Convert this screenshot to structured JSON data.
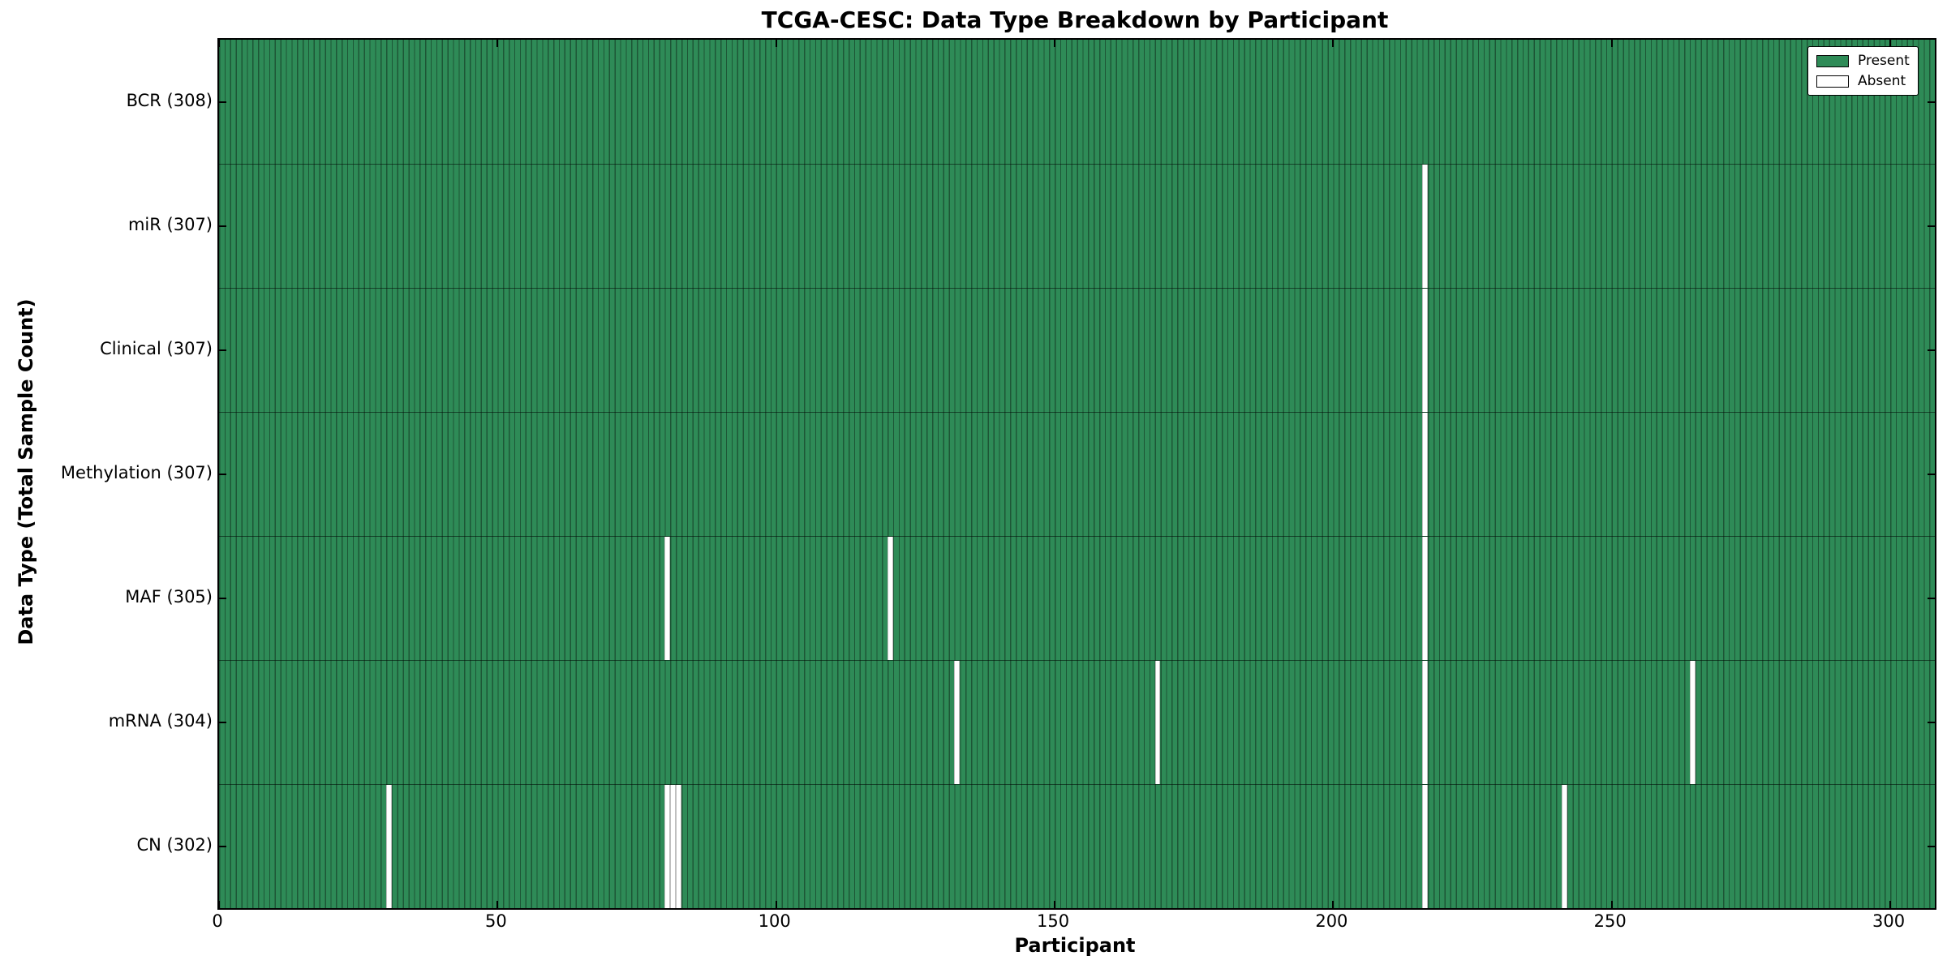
{
  "title": "TCGA-CESC: Data Type Breakdown by Participant",
  "xlabel": "Participant",
  "ylabel": "Data Type (Total Sample Count)",
  "legend": {
    "present_label": "Present",
    "absent_label": "Absent",
    "position": "upper right"
  },
  "colors": {
    "present": "#2E8B57",
    "absent": "#FFFFFF",
    "bar_edge": "rgba(0,0,0,0.38)",
    "axis": "#000000"
  },
  "chart_data": {
    "type": "heatmap",
    "title": "TCGA-CESC: Data Type Breakdown by Participant",
    "xlabel": "Participant",
    "ylabel": "Data Type (Total Sample Count)",
    "x_ticks": [
      0,
      50,
      100,
      150,
      200,
      250,
      300
    ],
    "xlim": [
      0,
      308
    ],
    "total_participants": 308,
    "grid": false,
    "legend_entries": [
      "Present",
      "Absent"
    ],
    "rows": [
      {
        "key": "bcr",
        "name": "BCR",
        "label": "BCR (308)",
        "count": 308,
        "absent": []
      },
      {
        "key": "mir",
        "name": "miR",
        "label": "miR (307)",
        "count": 307,
        "absent": [
          216
        ]
      },
      {
        "key": "clinical",
        "name": "Clinical",
        "label": "Clinical (307)",
        "count": 307,
        "absent": [
          216
        ]
      },
      {
        "key": "methylation",
        "name": "Methylation",
        "label": "Methylation (307)",
        "count": 307,
        "absent": [
          216
        ]
      },
      {
        "key": "maf",
        "name": "MAF",
        "label": "MAF (305)",
        "count": 305,
        "absent": [
          80,
          120,
          216
        ]
      },
      {
        "key": "mrna",
        "name": "mRNA",
        "label": "mRNA (304)",
        "count": 304,
        "absent": [
          132,
          168,
          216,
          264
        ]
      },
      {
        "key": "cn",
        "name": "CN",
        "label": "CN (302)",
        "count": 302,
        "absent": [
          30,
          80,
          81,
          82,
          216,
          241
        ]
      }
    ]
  }
}
